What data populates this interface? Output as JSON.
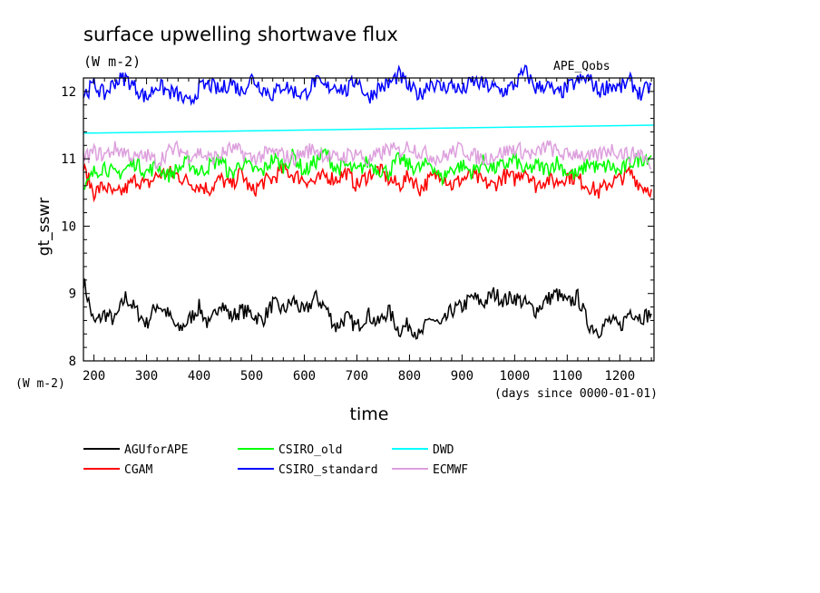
{
  "chart_data": {
    "type": "line",
    "title": "surface upwelling shortwave flux",
    "units": "(W m-2)",
    "corner_label": "APE_Qobs",
    "xlabel": "time",
    "xunits": "(days since 0000-01-01)",
    "ylabel": "gt_sswr",
    "yunits": "(W m-2)",
    "xlim": [
      180,
      1265
    ],
    "ylim": [
      8,
      12.2
    ],
    "xticks": [
      200,
      300,
      400,
      500,
      600,
      700,
      800,
      900,
      1000,
      1100,
      1200
    ],
    "yticks": [
      8,
      9,
      10,
      11,
      12
    ],
    "grid": false,
    "legend_position": "bottom",
    "series": [
      {
        "name": "AGUforAPE",
        "color": "#000000",
        "x": [
          180,
          200,
          220,
          240,
          260,
          280,
          300,
          320,
          340,
          360,
          380,
          400,
          420,
          440,
          460,
          480,
          500,
          520,
          540,
          560,
          580,
          600,
          620,
          640,
          660,
          680,
          700,
          720,
          740,
          760,
          780,
          800,
          820,
          840,
          860,
          880,
          900,
          920,
          940,
          960,
          980,
          1000,
          1020,
          1040,
          1060,
          1080,
          1100,
          1120,
          1140,
          1160,
          1180,
          1200,
          1220,
          1240,
          1260
        ],
        "y": [
          9.2,
          8.55,
          8.7,
          8.6,
          8.95,
          8.75,
          8.55,
          8.85,
          8.7,
          8.45,
          8.6,
          8.8,
          8.5,
          8.9,
          8.65,
          8.75,
          8.7,
          8.6,
          8.85,
          8.75,
          8.9,
          8.7,
          8.95,
          8.8,
          8.5,
          8.65,
          8.5,
          8.7,
          8.55,
          8.75,
          8.45,
          8.55,
          8.35,
          8.65,
          8.5,
          8.75,
          8.8,
          8.95,
          8.85,
          9.0,
          8.9,
          8.95,
          8.85,
          8.75,
          8.9,
          9.0,
          8.85,
          8.95,
          8.55,
          8.45,
          8.6,
          8.5,
          8.75,
          8.65,
          8.7
        ]
      },
      {
        "name": "CGAM",
        "color": "#ff0000",
        "x": [
          180,
          200,
          220,
          240,
          260,
          280,
          300,
          320,
          340,
          360,
          380,
          400,
          420,
          440,
          460,
          480,
          500,
          520,
          540,
          560,
          580,
          600,
          620,
          640,
          660,
          680,
          700,
          720,
          740,
          760,
          780,
          800,
          820,
          840,
          860,
          880,
          900,
          920,
          940,
          960,
          980,
          1000,
          1020,
          1040,
          1060,
          1080,
          1100,
          1120,
          1140,
          1160,
          1180,
          1200,
          1220,
          1240,
          1260
        ],
        "y": [
          10.85,
          10.5,
          10.6,
          10.45,
          10.55,
          10.7,
          10.6,
          10.75,
          10.8,
          10.75,
          10.65,
          10.6,
          10.55,
          10.7,
          10.6,
          10.8,
          10.5,
          10.65,
          10.7,
          10.85,
          10.75,
          10.7,
          10.65,
          10.75,
          10.7,
          10.8,
          10.6,
          10.75,
          10.85,
          10.7,
          10.6,
          10.75,
          10.55,
          10.7,
          10.8,
          10.6,
          10.7,
          10.75,
          10.65,
          10.6,
          10.75,
          10.7,
          10.85,
          10.6,
          10.7,
          10.65,
          10.75,
          10.7,
          10.6,
          10.5,
          10.65,
          10.7,
          10.8,
          10.6,
          10.55
        ]
      },
      {
        "name": "CSIRO_old",
        "color": "#00ff00",
        "x": [
          180,
          200,
          220,
          240,
          260,
          280,
          300,
          320,
          340,
          360,
          380,
          400,
          420,
          440,
          460,
          480,
          500,
          520,
          540,
          560,
          580,
          600,
          620,
          640,
          660,
          680,
          700,
          720,
          740,
          760,
          780,
          800,
          820,
          840,
          860,
          880,
          900,
          920,
          940,
          960,
          980,
          1000,
          1020,
          1040,
          1060,
          1080,
          1100,
          1120,
          1140,
          1160,
          1180,
          1200,
          1220,
          1240,
          1260
        ],
        "y": [
          10.5,
          10.8,
          10.9,
          10.75,
          10.85,
          10.95,
          10.8,
          10.9,
          10.75,
          10.85,
          10.95,
          10.8,
          10.9,
          11.0,
          10.75,
          10.95,
          10.85,
          10.8,
          11.0,
          10.9,
          11.05,
          10.8,
          10.95,
          11.1,
          10.85,
          10.9,
          10.8,
          10.95,
          10.85,
          10.8,
          11.0,
          10.9,
          10.85,
          10.95,
          10.7,
          10.85,
          10.9,
          10.8,
          10.95,
          10.85,
          10.9,
          11.0,
          10.8,
          10.9,
          10.85,
          10.95,
          10.8,
          10.75,
          10.95,
          10.85,
          10.9,
          10.8,
          10.95,
          11.0,
          11.05
        ]
      },
      {
        "name": "CSIRO_standard",
        "color": "#0000ff",
        "x": [
          180,
          200,
          220,
          240,
          260,
          280,
          300,
          320,
          340,
          360,
          380,
          400,
          420,
          440,
          460,
          480,
          500,
          520,
          540,
          560,
          580,
          600,
          620,
          640,
          660,
          680,
          700,
          720,
          740,
          760,
          780,
          800,
          820,
          840,
          860,
          880,
          900,
          920,
          940,
          960,
          980,
          1000,
          1020,
          1040,
          1060,
          1080,
          1100,
          1120,
          1140,
          1160,
          1180,
          1200,
          1220,
          1240,
          1260
        ],
        "y": [
          11.95,
          12.1,
          11.95,
          12.15,
          12.2,
          12.05,
          11.9,
          12.1,
          12.0,
          11.95,
          11.8,
          12.05,
          12.1,
          12.0,
          12.15,
          12.0,
          12.2,
          12.05,
          11.95,
          12.1,
          12.0,
          11.95,
          12.15,
          12.05,
          12.1,
          12.0,
          12.2,
          11.9,
          12.05,
          12.1,
          12.25,
          12.05,
          11.95,
          12.15,
          12.05,
          12.1,
          12.0,
          12.15,
          12.1,
          12.05,
          12.0,
          12.1,
          12.3,
          12.05,
          12.1,
          11.95,
          12.05,
          12.15,
          12.2,
          12.0,
          12.1,
          12.05,
          12.15,
          11.95,
          12.1
        ]
      },
      {
        "name": "DWD",
        "color": "#00ffff",
        "x": [
          180,
          1265
        ],
        "y": [
          11.38,
          11.5
        ]
      },
      {
        "name": "ECMWF",
        "color": "#dda0dd",
        "x": [
          180,
          200,
          220,
          240,
          260,
          280,
          300,
          320,
          340,
          360,
          380,
          400,
          420,
          440,
          460,
          480,
          500,
          520,
          540,
          560,
          580,
          600,
          620,
          640,
          660,
          680,
          700,
          720,
          740,
          760,
          780,
          800,
          820,
          840,
          860,
          880,
          900,
          920,
          940,
          960,
          980,
          1000,
          1020,
          1040,
          1060,
          1080,
          1100,
          1120,
          1140,
          1160,
          1180,
          1200,
          1220,
          1240,
          1260
        ],
        "y": [
          11.0,
          11.1,
          11.05,
          11.15,
          11.1,
          11.0,
          11.05,
          10.95,
          11.1,
          11.15,
          11.05,
          11.1,
          11.0,
          11.05,
          11.15,
          11.1,
          11.0,
          11.05,
          11.1,
          11.05,
          11.0,
          11.1,
          11.15,
          11.05,
          11.0,
          11.05,
          11.1,
          10.95,
          11.05,
          11.15,
          11.1,
          11.2,
          11.1,
          11.05,
          11.0,
          11.1,
          11.15,
          11.05,
          11.0,
          11.05,
          11.1,
          11.15,
          11.1,
          11.05,
          11.2,
          11.1,
          11.05,
          11.1,
          11.0,
          11.05,
          11.15,
          11.1,
          11.05,
          11.1,
          10.85
        ]
      }
    ]
  }
}
